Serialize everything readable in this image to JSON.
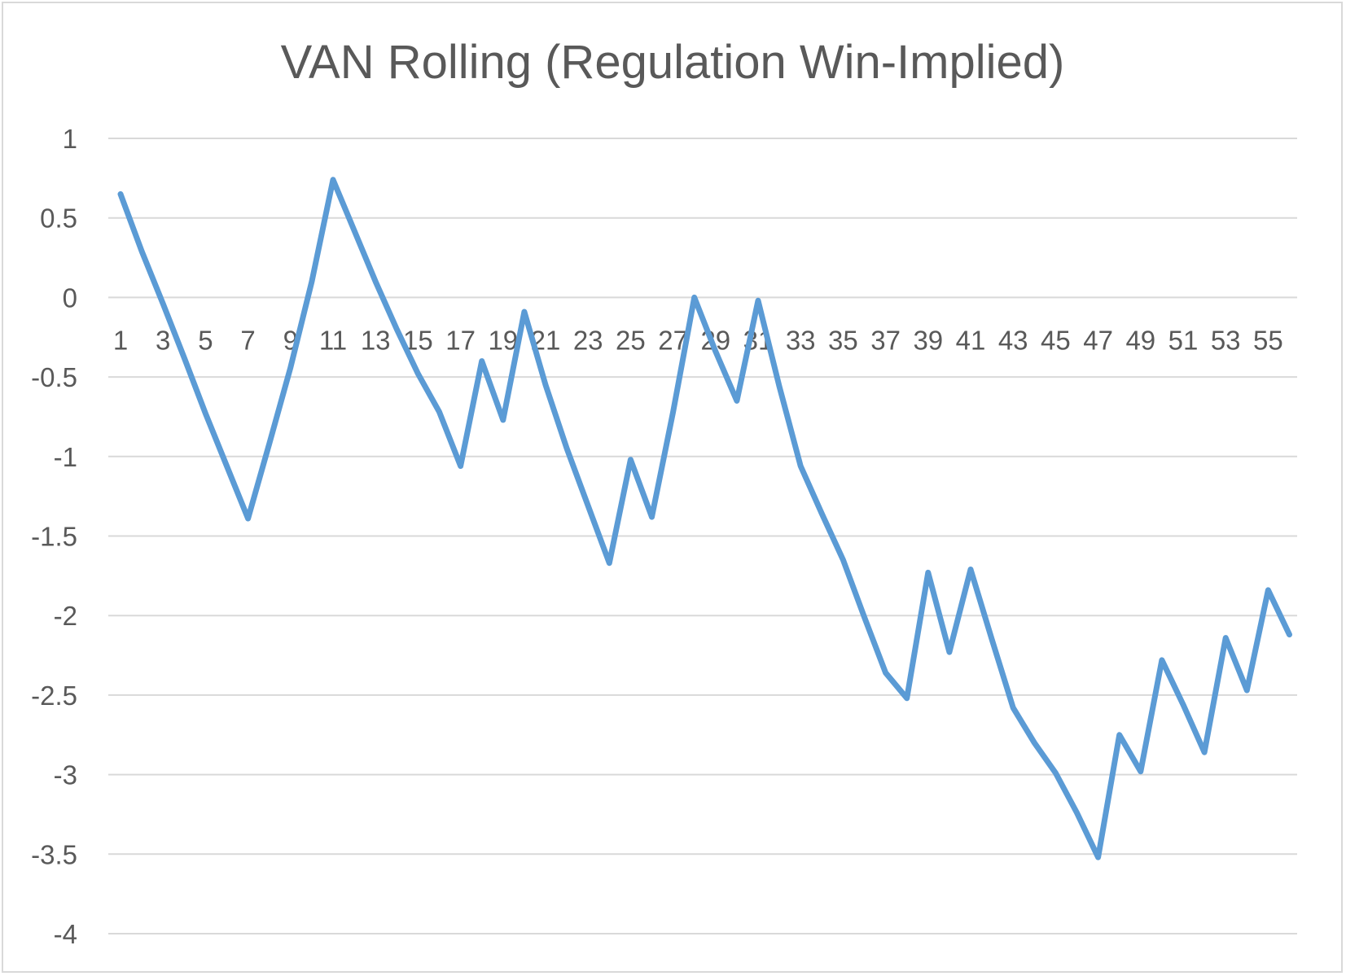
{
  "chart_data": {
    "type": "line",
    "title": "VAN Rolling (Regulation Win-Implied)",
    "xlabel": "",
    "ylabel": "",
    "ylim": [
      -4,
      1
    ],
    "yticks": [
      1,
      0.5,
      0,
      -0.5,
      -1,
      -1.5,
      -2,
      -2.5,
      -3,
      -3.5,
      -4
    ],
    "ytick_labels": [
      "1",
      "0.5",
      "0",
      "-0.5",
      "-1",
      "-1.5",
      "-2",
      "-2.5",
      "-3",
      "-3.5",
      "-4"
    ],
    "xtick_labels": [
      "1",
      "3",
      "5",
      "7",
      "9",
      "11",
      "13",
      "15",
      "17",
      "19",
      "21",
      "23",
      "25",
      "27",
      "29",
      "31",
      "33",
      "35",
      "37",
      "39",
      "41",
      "43",
      "45",
      "47",
      "49",
      "51",
      "53",
      "55"
    ],
    "grid": true,
    "legend": "none",
    "series": [
      {
        "color": "#5b9bd5",
        "x": [
          1,
          2,
          3,
          4,
          5,
          6,
          7,
          8,
          9,
          10,
          11,
          12,
          13,
          14,
          15,
          16,
          17,
          18,
          19,
          20,
          21,
          22,
          23,
          24,
          25,
          26,
          27,
          28,
          29,
          30,
          31,
          32,
          33,
          34,
          35,
          36,
          37,
          38,
          39,
          40,
          41,
          42,
          43,
          44,
          45,
          46,
          47,
          48,
          49,
          50,
          51,
          52,
          53,
          54,
          55,
          56
        ],
        "values": [
          0.65,
          0.29,
          -0.04,
          -0.38,
          -0.73,
          -1.06,
          -1.39,
          -0.92,
          -0.44,
          0.1,
          0.74,
          0.42,
          0.1,
          -0.2,
          -0.48,
          -0.72,
          -1.06,
          -0.4,
          -0.77,
          -0.09,
          -0.55,
          -0.95,
          -1.31,
          -1.67,
          -1.02,
          -1.38,
          -0.72,
          0.0,
          -0.34,
          -0.65,
          -0.02,
          -0.56,
          -1.06,
          -1.36,
          -1.65,
          -2.01,
          -2.36,
          -2.52,
          -1.73,
          -2.23,
          -1.71,
          -2.15,
          -2.58,
          -2.8,
          -2.99,
          -3.24,
          -3.52,
          -2.75,
          -2.98,
          -2.28,
          -2.56,
          -2.86,
          -2.14,
          -2.47,
          -1.84,
          -2.12
        ]
      }
    ]
  }
}
